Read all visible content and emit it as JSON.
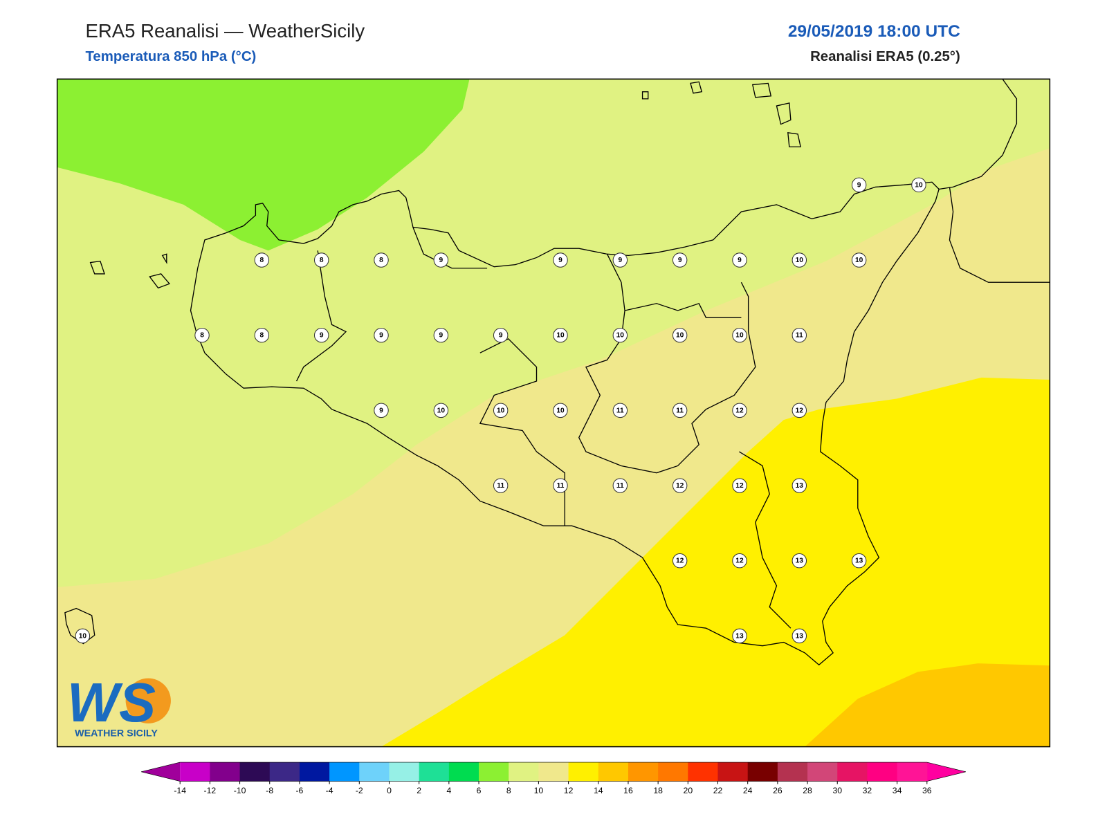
{
  "header": {
    "title": "ERA5 Reanalisi — WeatherSicily",
    "subtitle": "Temperatura 850 hPa (°C)",
    "date": "29/05/2019 18:00 UTC",
    "source": "Reanalisi ERA5 (0.25°)"
  },
  "logo": {
    "mark": "WS",
    "name": "WEATHER SICILY"
  },
  "stations": {
    "rows": [
      [
        null,
        null,
        null,
        null,
        null,
        null,
        null,
        null,
        null,
        null,
        null,
        null,
        null,
        9,
        10
      ],
      [
        null,
        null,
        null,
        8,
        8,
        8,
        9,
        null,
        9,
        9,
        9,
        9,
        10,
        10,
        null
      ],
      [
        null,
        null,
        8,
        8,
        9,
        9,
        9,
        9,
        10,
        10,
        10,
        10,
        11,
        null,
        null
      ],
      [
        null,
        null,
        null,
        null,
        null,
        9,
        10,
        10,
        10,
        11,
        11,
        12,
        12,
        null,
        null
      ],
      [
        null,
        null,
        null,
        null,
        null,
        null,
        null,
        11,
        11,
        11,
        12,
        12,
        13,
        null,
        null
      ],
      [
        null,
        null,
        null,
        null,
        null,
        null,
        null,
        null,
        null,
        null,
        12,
        12,
        13,
        13,
        null
      ],
      [
        10,
        null,
        null,
        null,
        null,
        null,
        null,
        null,
        null,
        null,
        null,
        13,
        13,
        null,
        null
      ]
    ]
  },
  "colorbar": {
    "ticks": [
      -14,
      -12,
      -10,
      -8,
      -6,
      -4,
      -2,
      0,
      2,
      4,
      6,
      8,
      10,
      12,
      14,
      16,
      18,
      20,
      22,
      24,
      26,
      28,
      30,
      32,
      34,
      36
    ],
    "colors": [
      "#c800c8",
      "#82008c",
      "#2d0a55",
      "#3c2887",
      "#0018a0",
      "#0096ff",
      "#6ed2fa",
      "#96f0e6",
      "#1ee096",
      "#00dc50",
      "#8cf032",
      "#e0f282",
      "#f0e88c",
      "#fff000",
      "#ffc800",
      "#ff9600",
      "#ff7800",
      "#ff3200",
      "#c81414",
      "#780000",
      "#b43250",
      "#d24678",
      "#e61464",
      "#ff0082",
      "#ff1496"
    ],
    "under": "#a0009b",
    "over": "#ff00a0"
  }
}
